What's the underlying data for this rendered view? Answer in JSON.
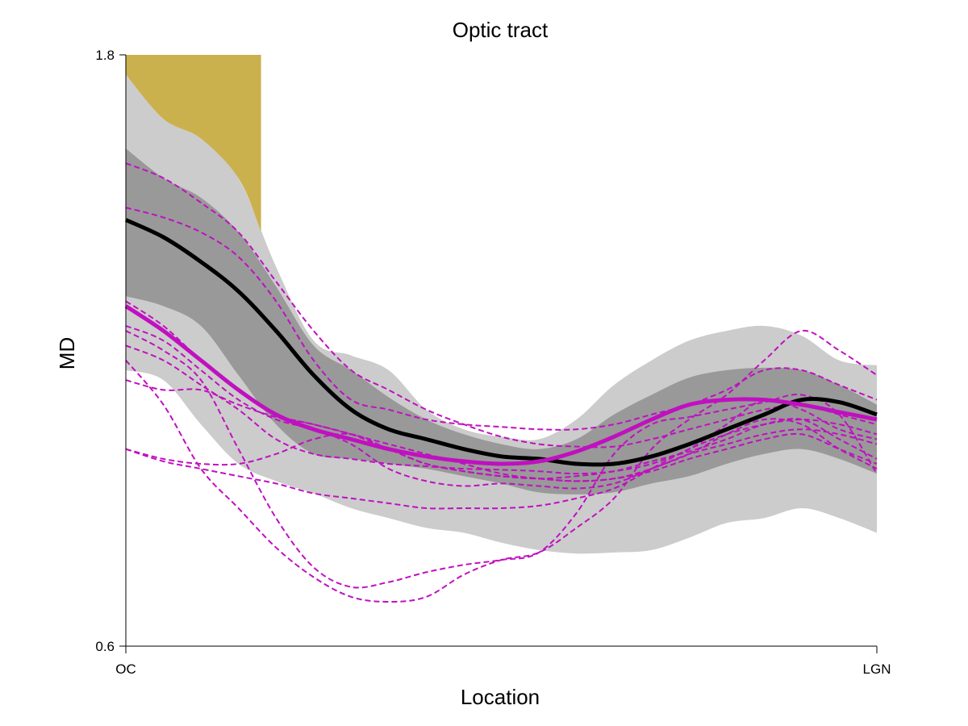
{
  "chart_data": {
    "type": "line",
    "title": "Optic tract",
    "xlabel": "Location",
    "ylabel": "MD",
    "ylim": [
      0.6,
      1.8
    ],
    "y_ticks": [
      "0.6",
      "1.8"
    ],
    "x_ticks": [
      "OC",
      "LGN"
    ],
    "grid": false,
    "legend": "none",
    "x": [
      0,
      0.05,
      0.1,
      0.15,
      0.2,
      0.25,
      0.3,
      0.35,
      0.4,
      0.45,
      0.5,
      0.55,
      0.6,
      0.65,
      0.7,
      0.75,
      0.8,
      0.85,
      0.9,
      0.95,
      1.0
    ],
    "flag_region": {
      "x_range": [
        0,
        0.18
      ],
      "y_top": 1.8,
      "color": "#cbb04e"
    },
    "bands": [
      {
        "name": "outer",
        "color": "#cccccc",
        "upper": [
          1.76,
          1.67,
          1.63,
          1.55,
          1.37,
          1.22,
          1.19,
          1.16,
          1.08,
          1.04,
          1.025,
          1.02,
          1.06,
          1.13,
          1.18,
          1.22,
          1.24,
          1.25,
          1.23,
          1.18,
          1.17
        ],
        "lower": [
          1.16,
          1.14,
          1.05,
          0.97,
          0.935,
          0.91,
          0.88,
          0.86,
          0.84,
          0.83,
          0.81,
          0.795,
          0.788,
          0.79,
          0.795,
          0.82,
          0.85,
          0.86,
          0.88,
          0.86,
          0.83
        ]
      },
      {
        "name": "inner",
        "color": "#999999",
        "upper": [
          1.61,
          1.55,
          1.51,
          1.44,
          1.33,
          1.21,
          1.16,
          1.105,
          1.06,
          1.03,
          1.01,
          1.0,
          1.02,
          1.07,
          1.11,
          1.145,
          1.16,
          1.165,
          1.16,
          1.13,
          1.09
        ],
        "lower": [
          1.31,
          1.29,
          1.25,
          1.15,
          1.05,
          0.99,
          0.98,
          0.97,
          0.96,
          0.945,
          0.93,
          0.912,
          0.908,
          0.912,
          0.93,
          0.945,
          0.97,
          0.99,
          1.0,
          0.98,
          0.95
        ]
      }
    ],
    "series": [
      {
        "role": "population-mean",
        "color": "#000000",
        "width": 5,
        "dash": "",
        "values": [
          1.465,
          1.43,
          1.38,
          1.32,
          1.24,
          1.15,
          1.08,
          1.04,
          1.02,
          1.0,
          0.985,
          0.98,
          0.97,
          0.97,
          0.985,
          1.01,
          1.04,
          1.07,
          1.1,
          1.095,
          1.07
        ]
      },
      {
        "role": "patient-mean",
        "color": "#c010c0",
        "width": 5,
        "dash": "",
        "values": [
          1.29,
          1.24,
          1.18,
          1.12,
          1.07,
          1.04,
          1.02,
          1.0,
          0.985,
          0.975,
          0.97,
          0.975,
          0.995,
          1.025,
          1.06,
          1.09,
          1.1,
          1.1,
          1.09,
          1.075,
          1.06
        ]
      },
      {
        "role": "individual",
        "color": "#c010c0",
        "width": 2,
        "dash": "7,4",
        "values": [
          1.58,
          1.55,
          1.5,
          1.44,
          1.34,
          1.24,
          1.16,
          1.12,
          1.08,
          1.05,
          1.025,
          1.01,
          1.005,
          1.005,
          1.02,
          1.04,
          1.06,
          1.08,
          1.09,
          1.07,
          1.05
        ]
      },
      {
        "role": "individual",
        "color": "#c010c0",
        "width": 2,
        "dash": "7,4",
        "values": [
          1.49,
          1.47,
          1.44,
          1.39,
          1.3,
          1.18,
          1.1,
          1.08,
          1.06,
          1.05,
          1.045,
          1.04,
          1.04,
          1.05,
          1.07,
          1.09,
          1.12,
          1.16,
          1.16,
          1.13,
          1.1
        ]
      },
      {
        "role": "individual",
        "color": "#c010c0",
        "width": 2,
        "dash": "7,4",
        "values": [
          1.21,
          1.18,
          1.13,
          1.08,
          1.02,
          0.99,
          0.98,
          0.97,
          0.965,
          0.96,
          0.958,
          0.955,
          0.95,
          0.955,
          0.97,
          1.0,
          1.05,
          1.1,
          1.08,
          1.04,
          1.02
        ]
      },
      {
        "role": "individual",
        "color": "#c010c0",
        "width": 2,
        "dash": "7,4",
        "values": [
          1.0,
          0.975,
          0.96,
          0.945,
          0.93,
          0.91,
          0.9,
          0.89,
          0.88,
          0.88,
          0.88,
          0.885,
          0.9,
          0.92,
          0.96,
          1.0,
          1.03,
          1.05,
          1.06,
          1.05,
          1.03
        ]
      },
      {
        "role": "individual",
        "color": "#c010c0",
        "width": 2,
        "dash": "7,4",
        "values": [
          1.18,
          1.09,
          0.96,
          0.88,
          0.8,
          0.74,
          0.7,
          0.69,
          0.7,
          0.745,
          0.775,
          0.79,
          0.84,
          0.9,
          1.0,
          1.06,
          1.11,
          1.18,
          1.24,
          1.2,
          1.15
        ]
      },
      {
        "role": "individual",
        "color": "#c010c0",
        "width": 2,
        "dash": "7,4",
        "values": [
          1.24,
          1.2,
          1.14,
          1.0,
          0.86,
          0.76,
          0.72,
          0.73,
          0.75,
          0.765,
          0.775,
          0.79,
          0.87,
          0.99,
          1.05,
          1.065,
          1.08,
          1.095,
          1.11,
          1.07,
          0.95
        ]
      },
      {
        "role": "individual",
        "color": "#c010c0",
        "width": 2,
        "dash": "7,4",
        "values": [
          1.25,
          1.22,
          1.16,
          1.1,
          1.06,
          1.04,
          1.01,
          0.96,
          0.935,
          0.925,
          0.93,
          0.925,
          0.92,
          0.93,
          0.96,
          0.99,
          1.03,
          1.06,
          1.05,
          1.0,
          0.96
        ]
      },
      {
        "role": "individual",
        "color": "#c010c0",
        "width": 2,
        "dash": "7,4",
        "values": [
          1.14,
          1.12,
          1.12,
          1.09,
          1.065,
          1.05,
          1.03,
          1.01,
          0.99,
          0.97,
          0.95,
          0.94,
          0.935,
          0.94,
          0.96,
          0.99,
          1.01,
          1.03,
          1.04,
          1.03,
          1.01
        ]
      },
      {
        "role": "individual",
        "color": "#c010c0",
        "width": 2,
        "dash": "7,4",
        "values": [
          1.3,
          1.25,
          1.18,
          1.12,
          1.07,
          1.05,
          1.03,
          1.0,
          0.97,
          0.955,
          0.945,
          0.94,
          0.935,
          0.94,
          0.955,
          0.98,
          1.0,
          1.02,
          1.03,
          1.0,
          0.97
        ]
      },
      {
        "role": "individual",
        "color": "#c010c0",
        "width": 2,
        "dash": "7,4",
        "values": [
          1.0,
          0.98,
          0.97,
          0.97,
          0.99,
          1.02,
          1.03,
          1.0,
          0.97,
          0.955,
          0.945,
          0.94,
          0.945,
          0.955,
          0.975,
          0.995,
          1.02,
          1.05,
          1.06,
          1.02,
          0.98
        ]
      }
    ]
  }
}
